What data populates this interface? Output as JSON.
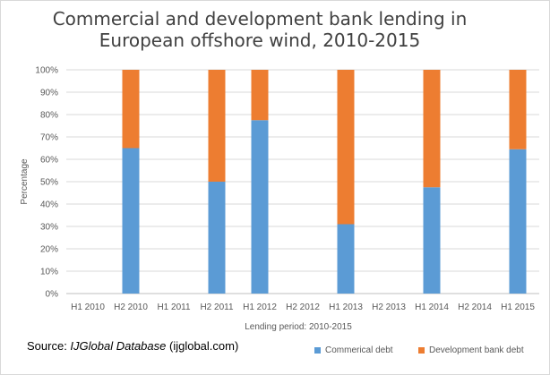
{
  "chart_data": {
    "type": "bar",
    "stacked": true,
    "title_line1": "Commercial and development bank lending in",
    "title_line2": "European offshore wind, 2010-2015",
    "xlabel": "Lending period: 2010-2015",
    "ylabel": "Percentage",
    "ylim": [
      0,
      100
    ],
    "yticks": [
      "0%",
      "10%",
      "20%",
      "30%",
      "40%",
      "50%",
      "60%",
      "70%",
      "80%",
      "90%",
      "100%"
    ],
    "categories": [
      "H1 2010",
      "H2 2010",
      "H1 2011",
      "H2 2011",
      "H1 2012",
      "H2 2012",
      "H1 2013",
      "H2 2013",
      "H1 2014",
      "H2 2014",
      "H1 2015"
    ],
    "series": [
      {
        "name": "Commerical debt",
        "color": "#5b9bd5",
        "values": [
          0,
          65,
          0,
          50,
          77.5,
          0,
          31,
          0,
          47.5,
          0,
          64.5
        ]
      },
      {
        "name": "Development bank debt",
        "color": "#ed7d31",
        "values": [
          0,
          35,
          0,
          50,
          22.5,
          0,
          69,
          0,
          52.5,
          0,
          35.5
        ]
      }
    ],
    "grid": true,
    "legend_position": "bottom-right"
  },
  "source": {
    "prefix": "Source: ",
    "italic": "IJGlobal Database",
    "suffix": " (ijglobal.com)"
  }
}
